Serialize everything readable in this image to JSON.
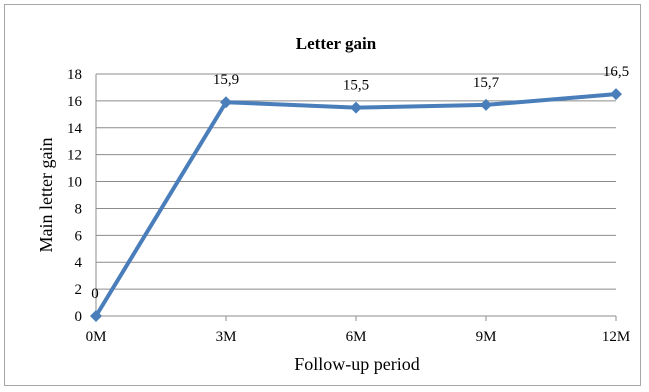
{
  "chart_data": {
    "type": "line",
    "title": "Letter gain",
    "xlabel": "Follow-up period",
    "ylabel": "Main letter gain",
    "categories": [
      "0M",
      "3M",
      "6M",
      "9M",
      "12M"
    ],
    "y_ticks": [
      "0",
      "2",
      "4",
      "6",
      "8",
      "10",
      "12",
      "14",
      "16",
      "18"
    ],
    "ylim": [
      0,
      18
    ],
    "grid": true,
    "legend": "none",
    "series": [
      {
        "values": [
          0,
          15.9,
          15.5,
          15.7,
          16.5
        ],
        "labels": [
          "0",
          "15,9",
          "15,5",
          "15,7",
          "16,5"
        ],
        "color": "#4a7ebb",
        "marker": "diamond"
      }
    ]
  }
}
